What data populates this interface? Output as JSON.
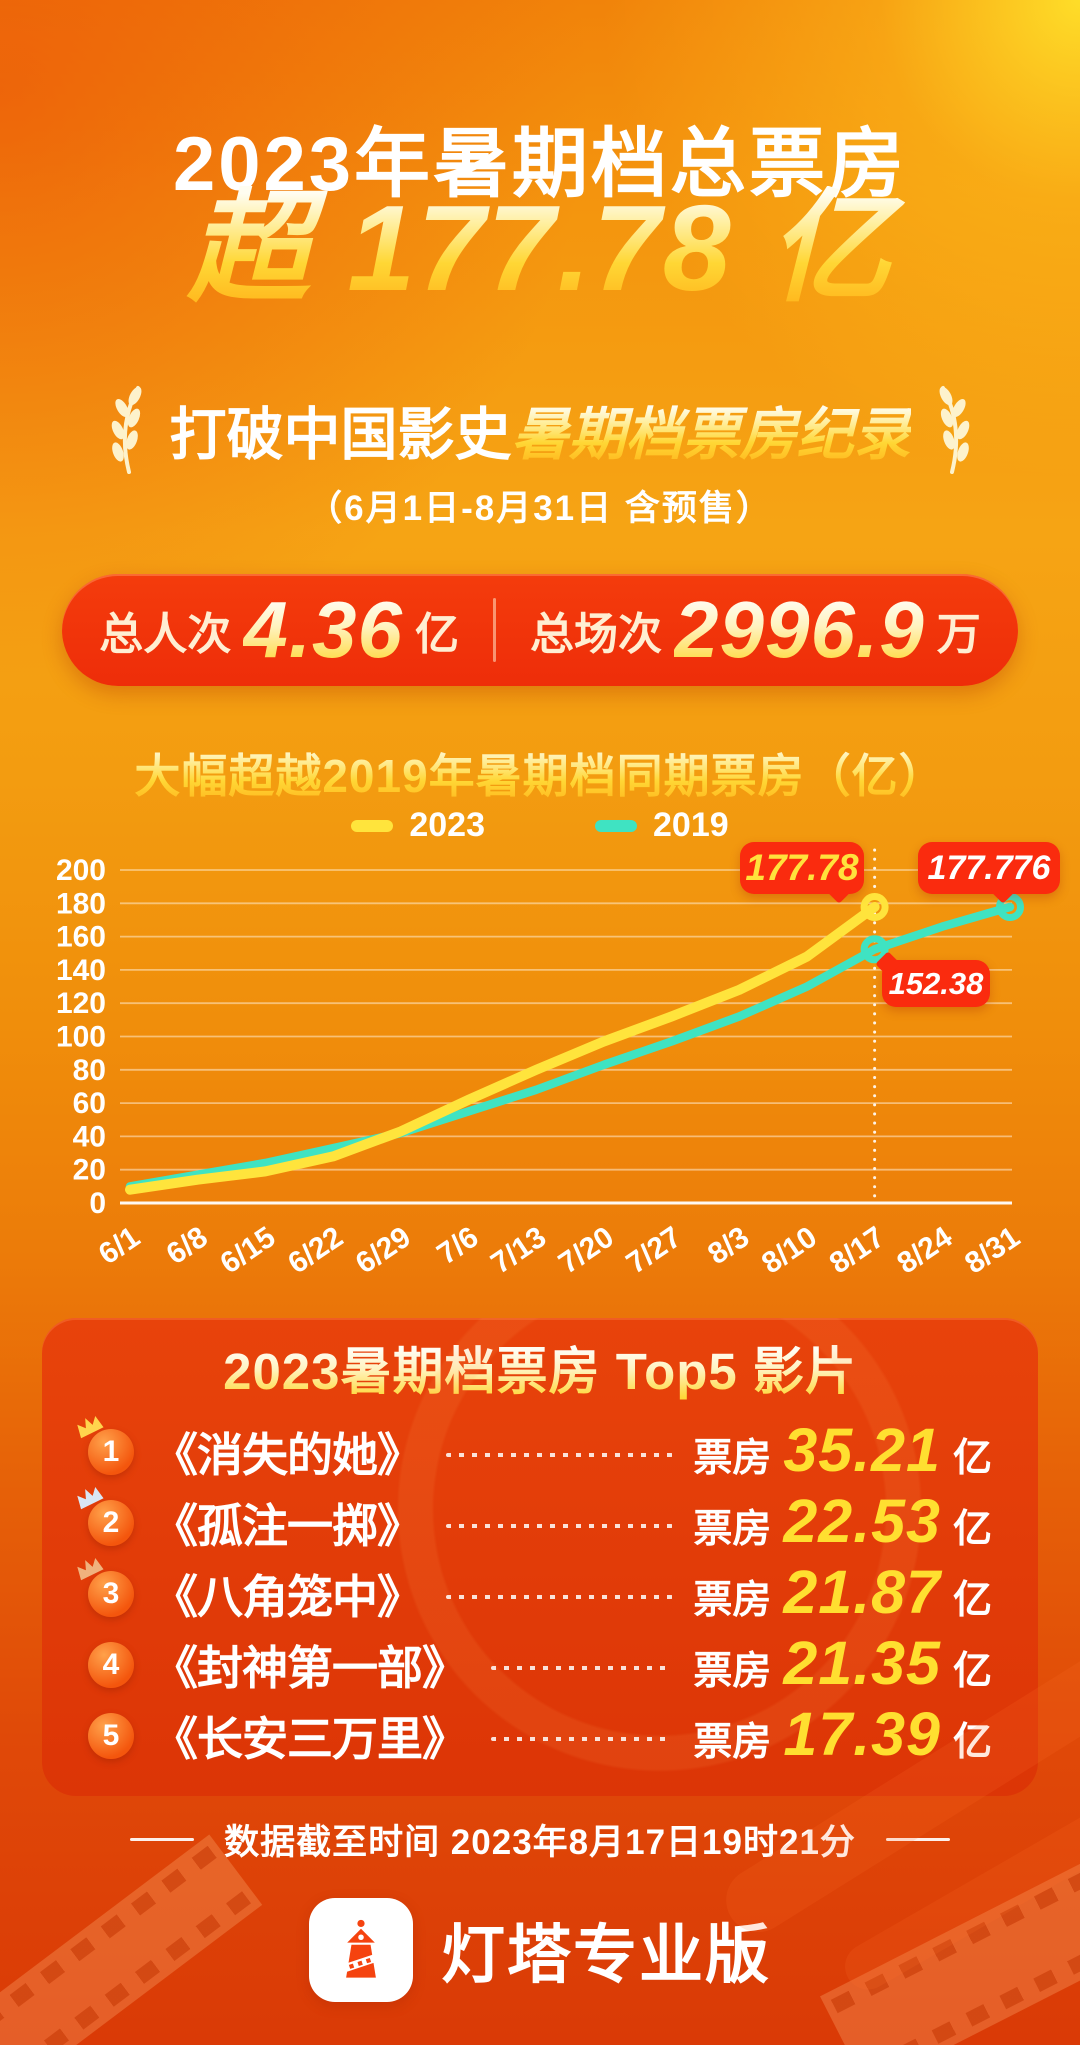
{
  "poster": {
    "title": "2023年暑期档总票房",
    "headline": {
      "prefix": "超",
      "number": "177.78",
      "unit": "亿"
    },
    "record": {
      "normal": "打破中国影史",
      "highlight": "暑期档票房纪录"
    },
    "date_note": "（6月1日-8月31日 含预售）",
    "stats": [
      {
        "label": "总人次",
        "value": "4.36",
        "unit": "亿"
      },
      {
        "label": "总场次",
        "value": "2996.9",
        "unit": "万"
      }
    ]
  },
  "chart_data": {
    "type": "line",
    "title": "大幅超越2019年暑期档同期票房（亿）",
    "categories": [
      "6/1",
      "6/8",
      "6/15",
      "6/22",
      "6/29",
      "7/6",
      "7/13",
      "7/20",
      "7/27",
      "8/3",
      "8/10",
      "8/17",
      "8/24",
      "8/31"
    ],
    "yticks": [
      "200",
      "180",
      "160",
      "140",
      "120",
      "100",
      "80",
      "60",
      "40",
      "20",
      "0"
    ],
    "ylim": [
      0,
      200
    ],
    "grid": "horizontal",
    "legend_position": "top",
    "series": [
      {
        "name": "2023",
        "color": "#ffe43c",
        "values": [
          8,
          14,
          19,
          28,
          43,
          62,
          80,
          97,
          112,
          128,
          148,
          177.78,
          null,
          null
        ]
      },
      {
        "name": "2019",
        "color": "#3fe3c2",
        "values": [
          10,
          17,
          24,
          33,
          42,
          55,
          68,
          83,
          97,
          112,
          130,
          152.38,
          166,
          177.776
        ]
      }
    ],
    "annotations": [
      {
        "label": "177.78",
        "series": "2023",
        "x": "8/17",
        "value": 177.78
      },
      {
        "label": "177.776",
        "series": "2019",
        "x": "8/31",
        "value": 177.776
      },
      {
        "label": "152.38",
        "series": "2019",
        "x": "8/17",
        "value": 152.38
      }
    ],
    "marker_line_x": "8/17"
  },
  "top5": {
    "title": "2023暑期档票房 Top5 影片",
    "box_office_label": "票房",
    "unit": "亿",
    "items": [
      {
        "rank": "1",
        "title": "《消失的她》",
        "value": "35.21"
      },
      {
        "rank": "2",
        "title": "《孤注一掷》",
        "value": "22.53"
      },
      {
        "rank": "3",
        "title": "《八角笼中》",
        "value": "21.87"
      },
      {
        "rank": "4",
        "title": "《封神第一部》",
        "value": "21.35"
      },
      {
        "rank": "5",
        "title": "《长安三万里》",
        "value": "17.39"
      }
    ]
  },
  "footer": {
    "data_cutoff": "数据截至时间 2023年8月17日19时21分"
  },
  "brand": {
    "name": "灯塔专业版"
  },
  "colors": {
    "accent_yellow": "#ffe23c",
    "value_yellow": "#ffdf30",
    "bubble_red": "#fa2b0e",
    "banner_red": "#f43c0c",
    "panel_red": "#e8430b",
    "crown_gold": "#ffd44d",
    "crown_silver": "#d9e6f4",
    "crown_bronze": "#f0b27d"
  }
}
